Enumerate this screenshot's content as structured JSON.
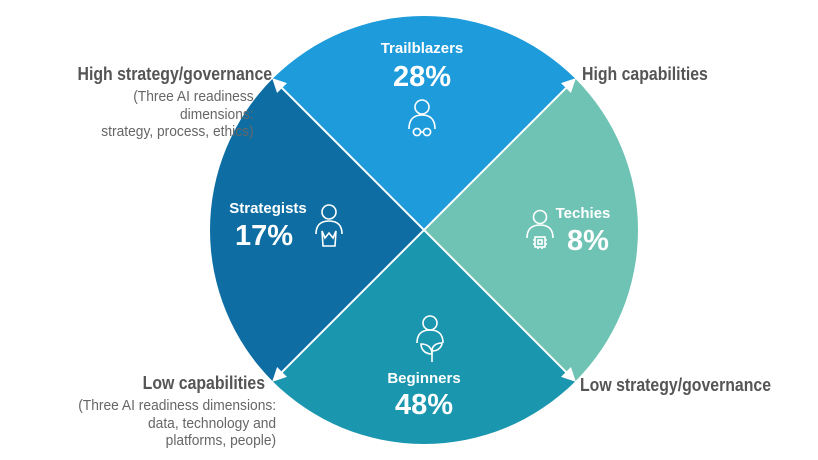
{
  "chart_data": {
    "type": "pie",
    "title": "",
    "unit": "%",
    "segments": [
      {
        "name": "Trailblazers",
        "value": 28,
        "label": "28%",
        "color": "#1e9bdb",
        "icon": "person-glasses-icon"
      },
      {
        "name": "Techies",
        "value": 8,
        "label": "8%",
        "color": "#6fc3b4",
        "icon": "person-chip-icon"
      },
      {
        "name": "Beginners",
        "value": 48,
        "label": "48%",
        "color": "#1a96ae",
        "icon": "person-sprout-icon"
      },
      {
        "name": "Strategists",
        "value": 17,
        "label": "17%",
        "color": "#0e6ea3",
        "icon": "person-crown-icon"
      }
    ],
    "axes": {
      "strategy": {
        "high_label": "High strategy/governance",
        "high_sub": [
          "(Three AI readiness",
          "dimensions:",
          "strategy, process, ethics)"
        ],
        "low_label": "Low strategy/governance"
      },
      "capabilities": {
        "high_label": "High capabilities",
        "low_label": "Low capabilities",
        "low_sub": [
          "(Three AI readiness dimensions:",
          "data, technology and",
          "platforms, people)"
        ]
      }
    }
  }
}
